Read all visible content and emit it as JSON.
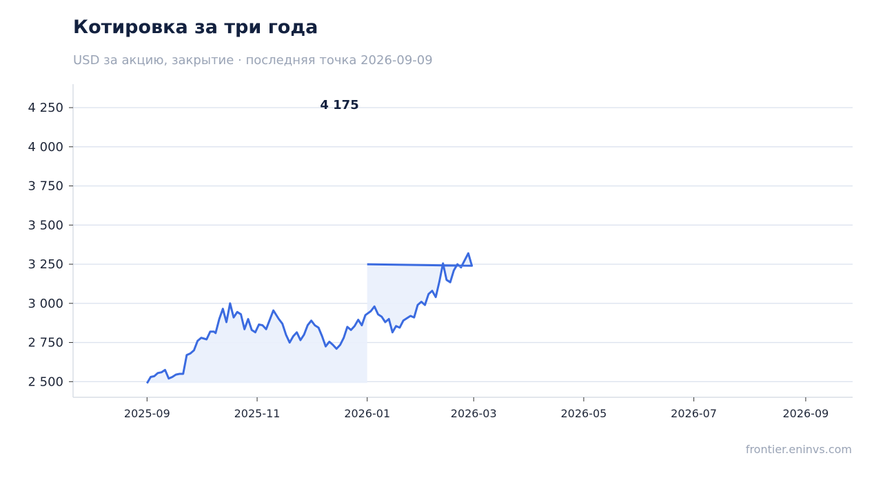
{
  "header": {
    "title": "Котировка за три года",
    "subtitle": "USD за акцию, закрытие · последняя точка 2026-09-09"
  },
  "footer": {
    "source": "frontier.eninvs.com"
  },
  "colors": {
    "line": "#3b6be0",
    "fill": "#e9effc",
    "grid": "#dde3ef",
    "axis": "#d8dde6"
  },
  "chart_data": {
    "type": "area",
    "ylim": [
      2400,
      4400
    ],
    "yticks": [
      2500,
      2750,
      3000,
      3250,
      3500,
      3750,
      4000,
      4250
    ],
    "ytick_labels": [
      "2 500",
      "2 750",
      "3 000",
      "3 250",
      "3 500",
      "3 750",
      "4 000",
      "4 250"
    ],
    "xlim": [
      "2025-07-22",
      "2026-09-27"
    ],
    "xticks": [
      "2025-09-01",
      "2025-11-01",
      "2026-01-01",
      "2026-03-01",
      "2026-05-01",
      "2026-07-01",
      "2026-09-01"
    ],
    "xtick_labels": [
      "2025-09",
      "2025-11",
      "2026-01",
      "2026-03",
      "2026-05",
      "2026-07",
      "2026-09"
    ],
    "grid": "horizontal",
    "last_value_label": "4 175",
    "series": [
      {
        "points": [
          [
            "2025-09-01",
            2490
          ],
          [
            "2025-09-03",
            2530
          ],
          [
            "2025-09-05",
            2535
          ],
          [
            "2025-09-07",
            2555
          ],
          [
            "2025-09-09",
            2560
          ],
          [
            "2025-09-11",
            2575
          ],
          [
            "2025-09-13",
            2520
          ],
          [
            "2025-09-15",
            2530
          ],
          [
            "2025-09-17",
            2545
          ],
          [
            "2025-09-19",
            2550
          ],
          [
            "2025-09-21",
            2550
          ],
          [
            "2025-09-23",
            2670
          ],
          [
            "2025-09-25",
            2680
          ],
          [
            "2025-09-27",
            2700
          ],
          [
            "2025-09-29",
            2760
          ],
          [
            "2025-10-01",
            2780
          ],
          [
            "2025-10-04",
            2770
          ],
          [
            "2025-10-06",
            2820
          ],
          [
            "2025-10-08",
            2820
          ],
          [
            "2025-10-09",
            2810
          ],
          [
            "2025-10-11",
            2900
          ],
          [
            "2025-10-13",
            2965
          ],
          [
            "2025-10-15",
            2880
          ],
          [
            "2025-10-17",
            3000
          ],
          [
            "2025-10-19",
            2910
          ],
          [
            "2025-10-21",
            2945
          ],
          [
            "2025-10-23",
            2930
          ],
          [
            "2025-10-25",
            2835
          ],
          [
            "2025-10-27",
            2900
          ],
          [
            "2025-10-29",
            2830
          ],
          [
            "2025-10-31",
            2815
          ],
          [
            "2025-11-02",
            2865
          ],
          [
            "2025-11-04",
            2860
          ],
          [
            "2025-11-06",
            2835
          ],
          [
            "2025-11-08",
            2895
          ],
          [
            "2025-11-10",
            2955
          ],
          [
            "2025-11-13",
            2900
          ],
          [
            "2025-11-15",
            2870
          ],
          [
            "2025-11-17",
            2800
          ],
          [
            "2025-11-19",
            2750
          ],
          [
            "2025-11-21",
            2790
          ],
          [
            "2025-11-23",
            2815
          ],
          [
            "2025-11-25",
            2765
          ],
          [
            "2025-11-27",
            2800
          ],
          [
            "2025-11-29",
            2860
          ],
          [
            "2025-12-01",
            2890
          ],
          [
            "2025-12-03",
            2860
          ],
          [
            "2025-12-05",
            2845
          ],
          [
            "2025-12-07",
            2790
          ],
          [
            "2025-12-09",
            2725
          ],
          [
            "2025-12-11",
            2755
          ],
          [
            "2025-12-13",
            2735
          ],
          [
            "2025-12-15",
            2710
          ],
          [
            "2025-12-17",
            2735
          ],
          [
            "2025-12-19",
            2780
          ],
          [
            "2025-12-21",
            2850
          ],
          [
            "2025-12-23",
            2830
          ],
          [
            "2025-12-25",
            2855
          ],
          [
            "2025-12-27",
            2895
          ],
          [
            "2025-12-29",
            2860
          ],
          [
            "2025-12-31",
            2925
          ],
          [
            "2026-01-03",
            2950
          ],
          [
            "2026-01-05",
            2980
          ],
          [
            "2026-01-07",
            2930
          ],
          [
            "2026-01-09",
            2915
          ],
          [
            "2026-01-11",
            2880
          ],
          [
            "2026-01-13",
            2900
          ],
          [
            "2026-01-15",
            2815
          ],
          [
            "2026-01-17",
            2855
          ],
          [
            "2026-01-19",
            2845
          ],
          [
            "2026-01-21",
            2890
          ],
          [
            "2026-01-23",
            2905
          ],
          [
            "2026-01-25",
            2920
          ],
          [
            "2026-01-27",
            2910
          ],
          [
            "2026-01-29",
            2990
          ],
          [
            "2026-01-31",
            3010
          ],
          [
            "2026-02-02",
            2990
          ],
          [
            "2026-02-04",
            3060
          ],
          [
            "2026-02-06",
            3080
          ],
          [
            "2026-02-08",
            3040
          ],
          [
            "2026-02-10",
            3140
          ],
          [
            "2026-02-12",
            3255
          ],
          [
            "2026-02-14",
            3150
          ],
          [
            "2026-02-16",
            3135
          ],
          [
            "2026-02-18",
            3210
          ],
          [
            "2026-02-20",
            3250
          ],
          [
            "2026-02-22",
            3230
          ],
          [
            "2026-02-24",
            3275
          ],
          [
            "2026-02-26",
            3320
          ],
          [
            "2026-02-28",
            3240
          ],
          [
            "2026-01-01",
            3250
          ]
        ]
      }
    ]
  }
}
